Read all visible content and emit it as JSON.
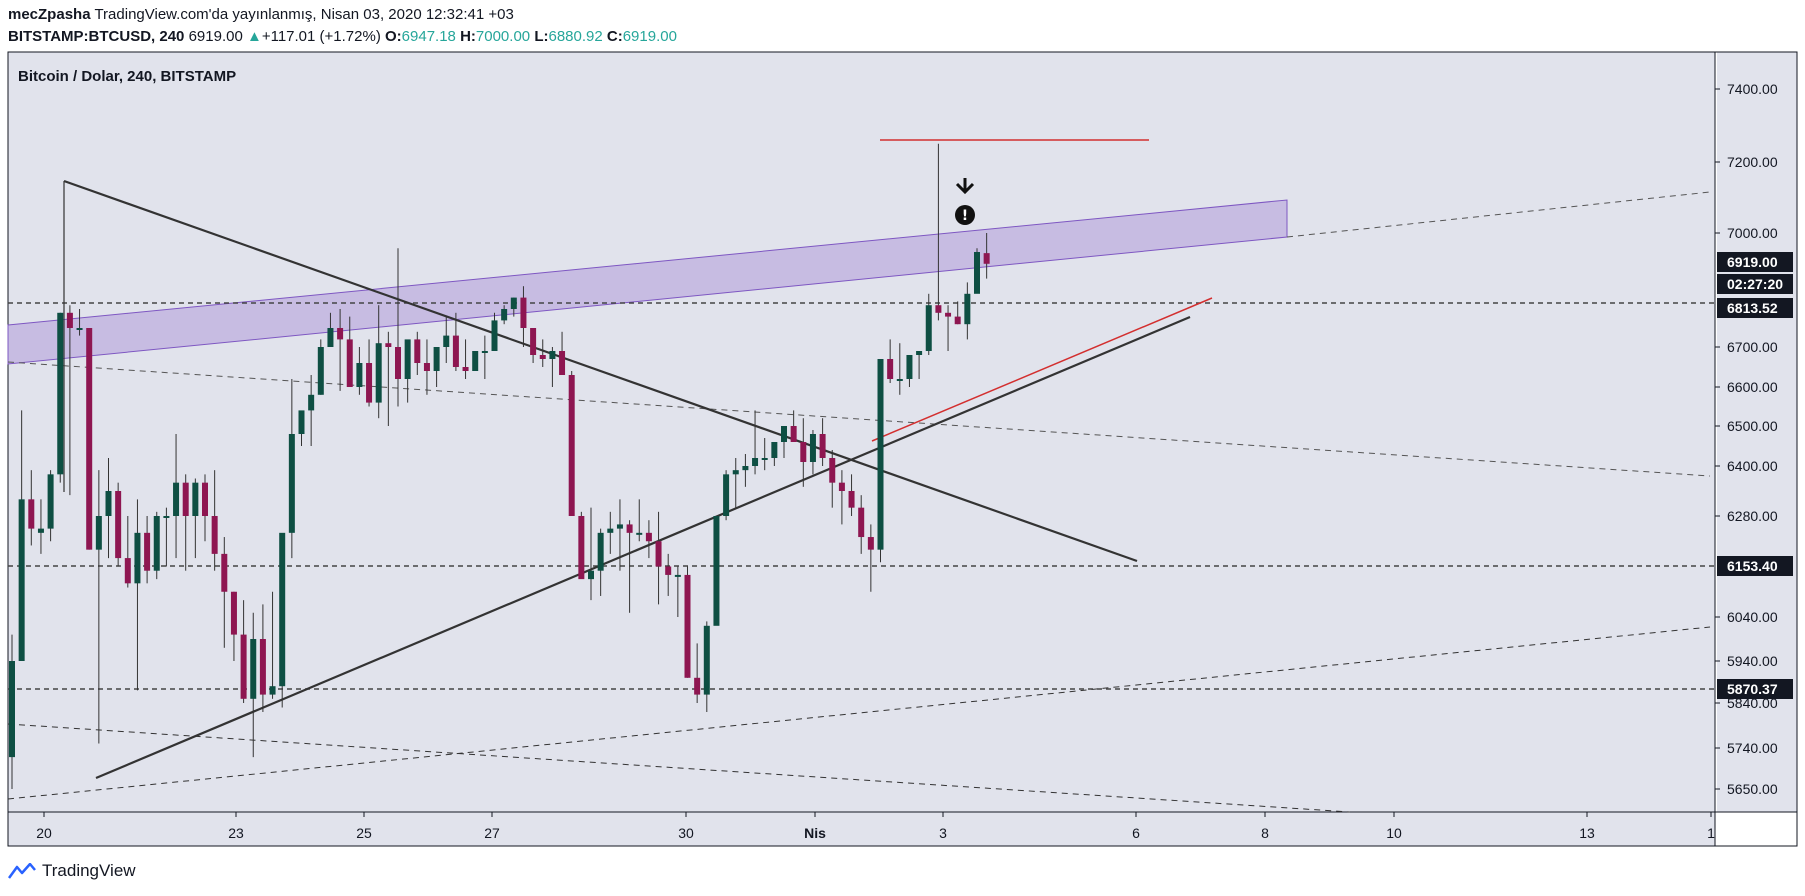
{
  "header": {
    "author": "mecZpasha",
    "published": "TradingView.com'da yayınlanmış, Nisan 03, 2020 12:32:41 +03",
    "symbol": "BITSTAMP:BTCUSD, 240",
    "price": "6919.00",
    "change_arrow": "▲",
    "change": "+117.01 (+1.72%)",
    "o_label": "O:",
    "o_value": "6947.18",
    "h_label": "H:",
    "h_value": "7000.00",
    "l_label": "L:",
    "l_value": "6880.92",
    "c_label": "C:",
    "c_value": "6919.00"
  },
  "chart_title": "Bitcoin / Dolar, 240, BITSTAMP",
  "footer": {
    "brand": "TradingView",
    "logo_icon": "tradingview-logo-icon"
  },
  "colors": {
    "bull": "#0e4f43",
    "bear": "#8e1651",
    "bg": "#e1e3ec",
    "band": "#b39ddb",
    "trendline": "#333333",
    "redline": "#d32f2f"
  },
  "chart_data": {
    "type": "candlestick",
    "timeframe": "240",
    "symbol": "BITSTAMP:BTCUSD",
    "y_ticks": [
      7400,
      7200,
      7000,
      6700,
      6600,
      6500,
      6400,
      6280,
      6040,
      5940,
      5840,
      5740,
      5650
    ],
    "y_tick_labels": [
      "7400.00",
      "7200.00",
      "7000.00",
      "6700.00",
      "6600.00",
      "6500.00",
      "6400.00",
      "6280.00",
      "6040.00",
      "5940.00",
      "5840.00",
      "5740.00",
      "5650.00"
    ],
    "x_ticks": [
      {
        "label": "20",
        "date": "2020-03-20"
      },
      {
        "label": "23",
        "date": "2020-03-23"
      },
      {
        "label": "25",
        "date": "2020-03-25"
      },
      {
        "label": "27",
        "date": "2020-03-27"
      },
      {
        "label": "30",
        "date": "2020-03-30"
      },
      {
        "label": "Nis",
        "date": "2020-04-01"
      },
      {
        "label": "3",
        "date": "2020-04-03"
      },
      {
        "label": "6",
        "date": "2020-04-06"
      },
      {
        "label": "8",
        "date": "2020-04-08"
      },
      {
        "label": "10",
        "date": "2020-04-10"
      },
      {
        "label": "13",
        "date": "2020-04-13"
      },
      {
        "label": "1",
        "date": "2020-04-15"
      }
    ],
    "price_labels": [
      {
        "value": "6919.00",
        "style": "dark"
      },
      {
        "value": "02:27:20",
        "style": "dark"
      },
      {
        "value": "6813.52",
        "style": "dark"
      },
      {
        "value": "6153.40",
        "style": "dark"
      },
      {
        "value": "5870.37",
        "style": "dark"
      }
    ],
    "horizontal_levels": [
      6813.52,
      6153.4,
      5870.37
    ],
    "candles": [
      [
        5720,
        5650,
        6000,
        5940
      ],
      [
        5940,
        5940,
        6540,
        6320
      ],
      [
        6320,
        6210,
        6390,
        6250
      ],
      [
        6240,
        6190,
        6320,
        6250
      ],
      [
        6250,
        6220,
        6390,
        6380
      ],
      [
        6380,
        6360,
        6790,
        6790
      ],
      [
        6790,
        6330,
        6810,
        6750
      ],
      [
        6750,
        6730,
        6800,
        6750
      ],
      [
        6750,
        6200,
        6750,
        6200
      ],
      [
        6200,
        5750,
        6390,
        6280
      ],
      [
        6280,
        6180,
        6420,
        6340
      ],
      [
        6340,
        6160,
        6360,
        6180
      ],
      [
        6180,
        6110,
        6280,
        6120
      ],
      [
        6120,
        5870,
        6320,
        6240
      ],
      [
        6240,
        6120,
        6280,
        6150
      ],
      [
        6150,
        6130,
        6290,
        6280
      ],
      [
        6280,
        6160,
        6300,
        6280
      ],
      [
        6280,
        6180,
        6480,
        6360
      ],
      [
        6360,
        6150,
        6380,
        6280
      ],
      [
        6280,
        6180,
        6370,
        6360
      ],
      [
        6360,
        6220,
        6380,
        6280
      ],
      [
        6280,
        6150,
        6390,
        6190
      ],
      [
        6190,
        5970,
        6230,
        6100
      ],
      [
        6100,
        5940,
        6100,
        6000
      ],
      [
        6000,
        5840,
        6080,
        5850
      ],
      [
        5850,
        5720,
        6050,
        5990
      ],
      [
        5990,
        5820,
        6070,
        5860
      ],
      [
        5860,
        5850,
        6100,
        5880
      ],
      [
        5880,
        5830,
        6230,
        6240
      ],
      [
        6240,
        6180,
        6620,
        6480
      ],
      [
        6480,
        6450,
        6530,
        6540
      ],
      [
        6540,
        6450,
        6630,
        6580
      ],
      [
        6580,
        6580,
        6720,
        6700
      ],
      [
        6700,
        6720,
        6790,
        6750
      ],
      [
        6750,
        6590,
        6800,
        6720
      ],
      [
        6720,
        6620,
        6780,
        6600
      ],
      [
        6600,
        6580,
        6700,
        6660
      ],
      [
        6660,
        6550,
        6720,
        6560
      ],
      [
        6560,
        6520,
        6810,
        6710
      ],
      [
        6710,
        6500,
        6740,
        6700
      ],
      [
        6700,
        6550,
        6960,
        6620
      ],
      [
        6620,
        6560,
        6700,
        6720
      ],
      [
        6720,
        6630,
        6740,
        6660
      ],
      [
        6660,
        6580,
        6720,
        6640
      ],
      [
        6640,
        6600,
        6680,
        6700
      ],
      [
        6700,
        6660,
        6780,
        6730
      ],
      [
        6730,
        6640,
        6790,
        6650
      ],
      [
        6650,
        6620,
        6720,
        6640
      ],
      [
        6640,
        6660,
        6680,
        6690
      ],
      [
        6690,
        6620,
        6730,
        6690
      ],
      [
        6690,
        6720,
        6790,
        6770
      ],
      [
        6770,
        6760,
        6810,
        6800
      ],
      [
        6800,
        6780,
        6830,
        6830
      ],
      [
        6830,
        6700,
        6860,
        6750
      ],
      [
        6750,
        6660,
        6750,
        6680
      ],
      [
        6680,
        6650,
        6720,
        6670
      ],
      [
        6670,
        6600,
        6700,
        6690
      ],
      [
        6690,
        6690,
        6740,
        6630
      ],
      [
        6630,
        6300,
        6640,
        6280
      ],
      [
        6280,
        6230,
        6290,
        6130
      ],
      [
        6130,
        6080,
        6300,
        6150
      ],
      [
        6150,
        6090,
        6250,
        6240
      ],
      [
        6240,
        6190,
        6290,
        6250
      ],
      [
        6250,
        6150,
        6320,
        6260
      ],
      [
        6260,
        6050,
        6270,
        6240
      ],
      [
        6240,
        6220,
        6320,
        6240
      ],
      [
        6240,
        6180,
        6270,
        6220
      ],
      [
        6220,
        6070,
        6290,
        6160
      ],
      [
        6160,
        6090,
        6190,
        6140
      ],
      [
        6140,
        6040,
        6160,
        6140
      ],
      [
        6140,
        5900,
        6160,
        5900
      ],
      [
        5900,
        5840,
        5980,
        5860
      ],
      [
        5860,
        5820,
        6030,
        6020
      ],
      [
        6020,
        6050,
        6280,
        6280
      ],
      [
        6280,
        6270,
        6390,
        6380
      ],
      [
        6380,
        6300,
        6420,
        6390
      ],
      [
        6390,
        6350,
        6430,
        6400
      ],
      [
        6400,
        6380,
        6540,
        6420
      ],
      [
        6420,
        6390,
        6470,
        6420
      ],
      [
        6420,
        6400,
        6460,
        6460
      ],
      [
        6460,
        6420,
        6500,
        6500
      ],
      [
        6500,
        6490,
        6540,
        6460
      ],
      [
        6460,
        6350,
        6520,
        6410
      ],
      [
        6410,
        6380,
        6490,
        6480
      ],
      [
        6480,
        6400,
        6520,
        6420
      ],
      [
        6420,
        6300,
        6440,
        6360
      ],
      [
        6360,
        6260,
        6390,
        6340
      ],
      [
        6340,
        6280,
        6380,
        6300
      ],
      [
        6300,
        6190,
        6330,
        6230
      ],
      [
        6230,
        6100,
        6260,
        6200
      ],
      [
        6200,
        6170,
        6330,
        6670
      ],
      [
        6670,
        6610,
        6720,
        6620
      ],
      [
        6620,
        6580,
        6710,
        6620
      ],
      [
        6620,
        6600,
        6680,
        6680
      ],
      [
        6680,
        6620,
        6690,
        6690
      ],
      [
        6690,
        6680,
        6840,
        6810
      ],
      [
        6810,
        6770,
        7250,
        6790
      ],
      [
        6790,
        6690,
        6810,
        6780
      ],
      [
        6780,
        6760,
        6820,
        6760
      ],
      [
        6760,
        6720,
        6870,
        6840
      ],
      [
        6840,
        6900,
        6960,
        6950
      ],
      [
        6947,
        6880,
        7000,
        6919
      ]
    ],
    "grid": false
  },
  "annotations": {
    "alert_icon": "alert-icon",
    "arrow_icon": "arrow-down-icon"
  }
}
